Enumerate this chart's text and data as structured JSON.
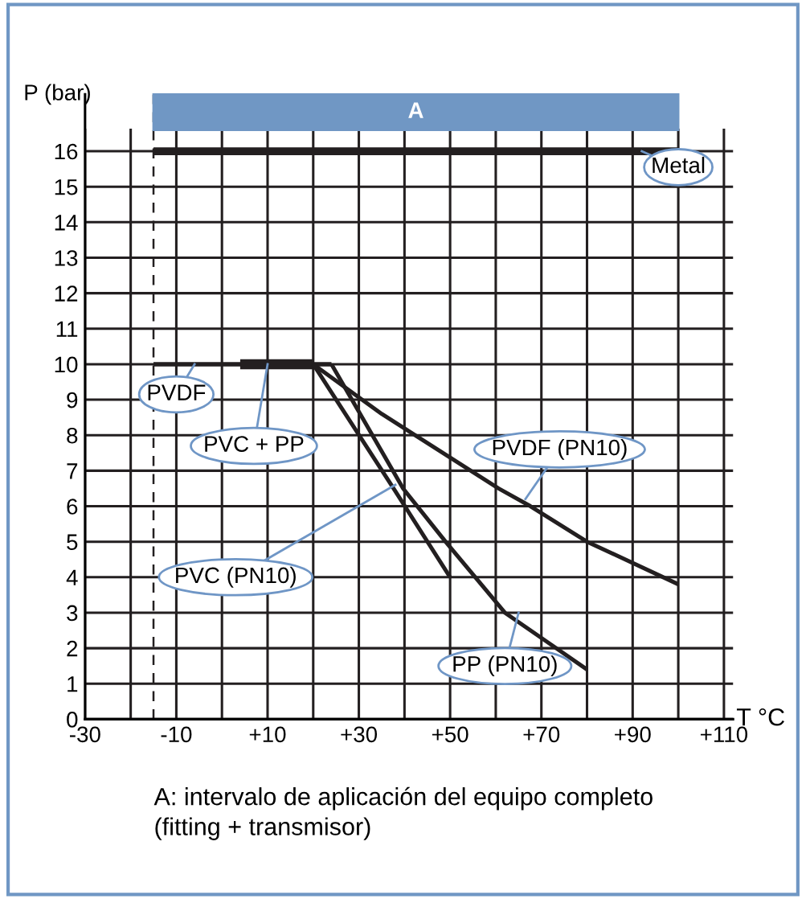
{
  "chart_data": {
    "type": "line",
    "xlabel": "T °C",
    "ylabel": "P (bar)",
    "series": [
      {
        "name": "Metal",
        "color": "#231f20",
        "x": [
          -15,
          100
        ],
        "values": [
          16,
          16
        ]
      },
      {
        "name": "PVDF",
        "color": "#231f20",
        "x": [
          -15,
          24
        ],
        "values": [
          10,
          10
        ]
      },
      {
        "name": "PVC + PP",
        "color": "#231f20",
        "x": [
          4,
          20
        ],
        "values": [
          10,
          10
        ]
      },
      {
        "name": "PVDF (PN10)",
        "color": "#231f20",
        "x": [
          20,
          35,
          60.6,
          67.6,
          80,
          100
        ],
        "values": [
          10,
          8.6,
          6.5,
          6,
          5,
          3.8
        ]
      },
      {
        "name": "PVC (PN10)",
        "color": "#231f20",
        "x": [
          20,
          37.6,
          50
        ],
        "values": [
          10,
          6.5,
          4
        ]
      },
      {
        "name": "PP (PN10)",
        "color": "#231f20",
        "x": [
          24,
          39.7,
          49,
          62,
          71,
          80
        ],
        "values": [
          10,
          6.5,
          5,
          3,
          2.2,
          1.4
        ]
      }
    ],
    "xlim": [
      -30,
      112
    ],
    "ylim": [
      0,
      17.6
    ],
    "xticks": [
      -30,
      {
        "value": -20,
        "label": null
      },
      -10,
      {
        "value": 0,
        "label": null
      },
      {
        "value": 10,
        "label": "+10"
      },
      {
        "value": 20,
        "label": null
      },
      {
        "value": 30,
        "label": "+30"
      },
      {
        "value": 40,
        "label": null
      },
      {
        "value": 50,
        "label": "+50"
      },
      {
        "value": 60,
        "label": null
      },
      {
        "value": 70,
        "label": "+70"
      },
      {
        "value": 80,
        "label": null
      },
      {
        "value": 90,
        "label": "+90"
      },
      {
        "value": 100,
        "label": null
      },
      {
        "value": 110,
        "label": "+110"
      }
    ],
    "yticks": [
      0,
      1,
      2,
      3,
      4,
      5,
      6,
      7,
      8,
      9,
      10,
      11,
      12,
      13,
      14,
      15,
      16
    ],
    "grid": true,
    "legend": false,
    "marker": "none",
    "line_style": "solid",
    "ref_lines": [
      {
        "axis": "x",
        "value": -15,
        "line_style": "dashed",
        "color": "#231f20"
      }
    ],
    "bands": [
      {
        "axis": "x",
        "from": -15,
        "to": 100,
        "label": "A",
        "color": "#7097c4"
      }
    ],
    "annotations": [
      "A: intervalo de aplicación del equipo completo\n(fitting + transmisor)"
    ]
  }
}
